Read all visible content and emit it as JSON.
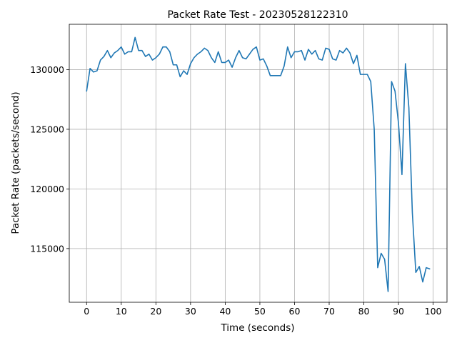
{
  "chart_data": {
    "type": "line",
    "title": "Packet Rate Test - 20230528122310",
    "xlabel": "Time (seconds)",
    "ylabel": "Packet Rate (packets/second)",
    "xlim": [
      -5,
      104
    ],
    "ylim": [
      110500,
      133800
    ],
    "xticks": [
      0,
      10,
      20,
      30,
      40,
      50,
      60,
      70,
      80,
      90,
      100
    ],
    "yticks": [
      115000,
      120000,
      125000,
      130000
    ],
    "grid": true,
    "color": "#1f77b4",
    "x": [
      0,
      1,
      2,
      3,
      4,
      5,
      6,
      7,
      8,
      9,
      10,
      11,
      12,
      13,
      14,
      15,
      16,
      17,
      18,
      19,
      20,
      21,
      22,
      23,
      24,
      25,
      26,
      27,
      28,
      29,
      30,
      31,
      32,
      33,
      34,
      35,
      36,
      37,
      38,
      39,
      40,
      41,
      42,
      43,
      44,
      45,
      46,
      47,
      48,
      49,
      50,
      51,
      52,
      53,
      54,
      55,
      56,
      57,
      58,
      59,
      60,
      61,
      62,
      63,
      64,
      65,
      66,
      67,
      68,
      69,
      70,
      71,
      72,
      73,
      74,
      75,
      76,
      77,
      78,
      79,
      80,
      81,
      82,
      83,
      84,
      85,
      86,
      87,
      88,
      89,
      90,
      91,
      92,
      93,
      94,
      95,
      96,
      97,
      98,
      99
    ],
    "y": [
      128200,
      130100,
      129800,
      129900,
      130800,
      131100,
      131600,
      131000,
      131400,
      131600,
      131900,
      131300,
      131500,
      131500,
      132700,
      131600,
      131600,
      131100,
      131300,
      130800,
      131000,
      131300,
      131900,
      131900,
      131500,
      130400,
      130400,
      129400,
      129900,
      129600,
      130500,
      131000,
      131300,
      131500,
      131800,
      131600,
      131000,
      130600,
      131500,
      130600,
      130600,
      130800,
      130200,
      131000,
      131600,
      131000,
      130900,
      131300,
      131700,
      131900,
      130800,
      130900,
      130300,
      129500,
      129500,
      129500,
      129500,
      130300,
      131900,
      131000,
      131500,
      131500,
      131600,
      130800,
      131700,
      131300,
      131600,
      130900,
      130800,
      131800,
      131700,
      130900,
      130800,
      131600,
      131400,
      131800,
      131400,
      130500,
      131200,
      129600,
      129600,
      129600,
      129000,
      125000,
      113400,
      114600,
      114100,
      111400,
      129000,
      128200,
      125500,
      121200,
      130500,
      126800,
      118000,
      113000,
      113500,
      112200,
      113400,
      113300
    ]
  }
}
